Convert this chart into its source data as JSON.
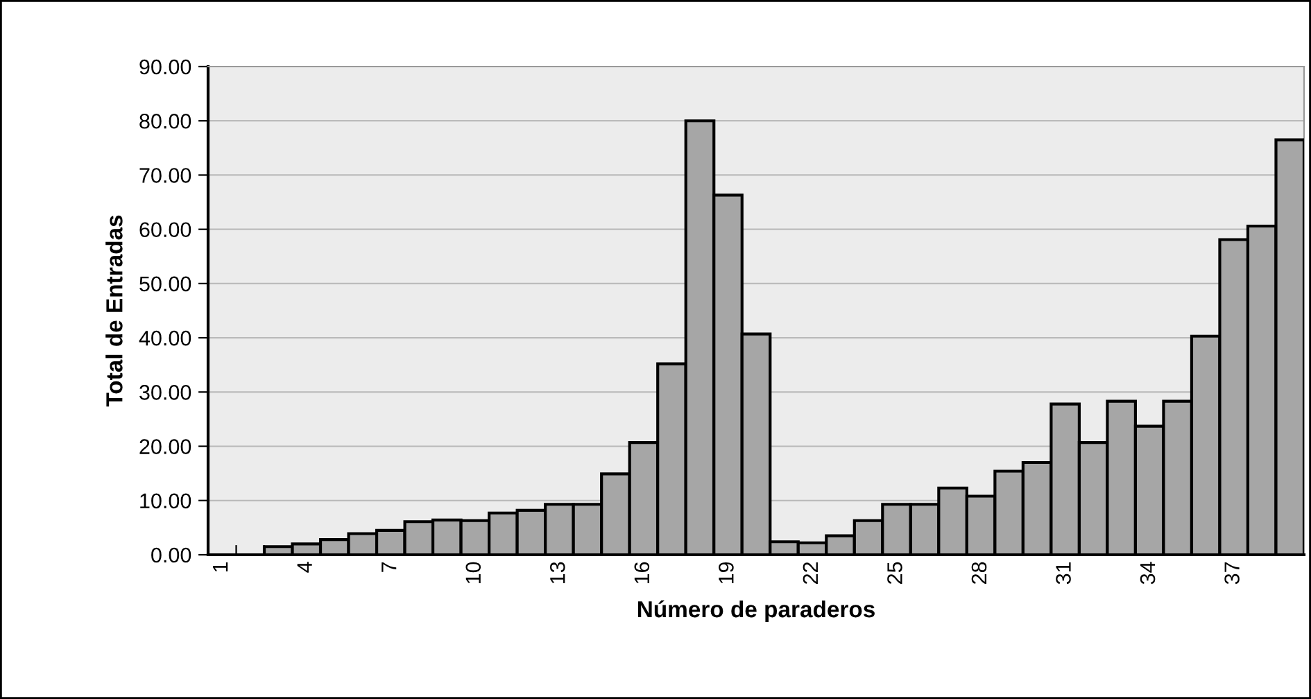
{
  "chart_data": {
    "type": "bar",
    "xlabel": "Número de paraderos",
    "ylabel": "Total de Entradas",
    "categories": [
      "1",
      null,
      null,
      "4",
      null,
      null,
      "7",
      null,
      null,
      "10",
      null,
      null,
      "13",
      null,
      null,
      "16",
      null,
      null,
      "19",
      null,
      null,
      "22",
      null,
      null,
      "25",
      null,
      null,
      "28",
      null,
      null,
      "31",
      null,
      null,
      "34",
      null,
      null,
      "37",
      null,
      null
    ],
    "values": [
      null,
      null,
      1.5,
      2.0,
      2.8,
      3.9,
      4.5,
      6.1,
      6.4,
      6.3,
      7.7,
      8.2,
      9.3,
      9.3,
      14.9,
      20.7,
      35.2,
      80.0,
      66.3,
      40.7,
      2.4,
      2.2,
      3.5,
      6.3,
      9.3,
      9.3,
      12.3,
      10.8,
      15.4,
      17.0,
      27.8,
      20.7,
      28.3,
      23.7,
      28.3,
      40.3,
      58.1,
      60.6,
      76.5
    ],
    "color": "#a6a6a6",
    "ylim": [
      0,
      90
    ],
    "yticks": [
      {
        "value": 0,
        "label": "0.00"
      },
      {
        "value": 10,
        "label": "10.00"
      },
      {
        "value": 20,
        "label": "20.00"
      },
      {
        "value": 30,
        "label": "30.00"
      },
      {
        "value": 40,
        "label": "40.00"
      },
      {
        "value": 50,
        "label": "50.00"
      },
      {
        "value": 60,
        "label": "60.00"
      },
      {
        "value": 70,
        "label": "70.00"
      },
      {
        "value": 80,
        "label": "80.00"
      },
      {
        "value": 90,
        "label": "90.00"
      }
    ],
    "grid": "y"
  }
}
